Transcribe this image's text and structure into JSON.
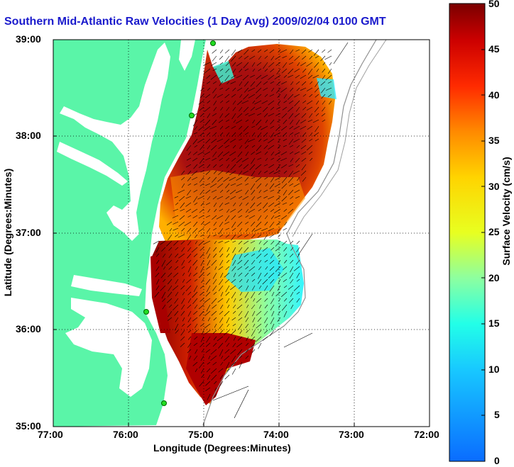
{
  "title": "Southern Mid-Atlantic Raw Velocities (1 Day Avg) 2009/02/04 0100 GMT",
  "xlabel": "Longitude (Degrees:Minutes)",
  "ylabel": "Latitude (Degrees:Minutes)",
  "colorbar_label": "Surface Velocity (cm/s)",
  "x_ticks": [
    "77:00",
    "76:00",
    "75:00",
    "74:00",
    "73:00",
    "72:00"
  ],
  "y_ticks": [
    "39:00",
    "38:00",
    "37:00",
    "36:00",
    "35:00"
  ],
  "colorbar_ticks": [
    "50",
    "45",
    "40",
    "35",
    "30",
    "25",
    "20",
    "15",
    "10",
    "5",
    "0"
  ],
  "colors": {
    "land": "#5af5a8",
    "water": "#ffffff",
    "title": "#1a1acc"
  },
  "chart_data": {
    "type": "heatmap",
    "title": "Southern Mid-Atlantic Raw Velocities (1 Day Avg) 2009/02/04 0100 GMT",
    "xlabel": "Longitude (Degrees:Minutes)",
    "ylabel": "Latitude (Degrees:Minutes)",
    "xlim": [
      -77,
      -72
    ],
    "ylim": [
      35,
      39
    ],
    "colorbar": {
      "label": "Surface Velocity (cm/s)",
      "range": [
        0,
        50
      ]
    },
    "grid": true
  }
}
